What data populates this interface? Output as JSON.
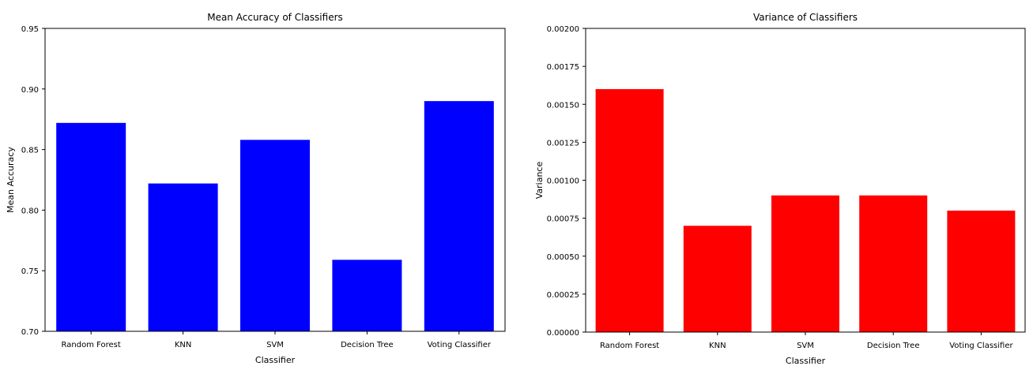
{
  "chart_data": [
    {
      "type": "bar",
      "title": "Mean Accuracy of Classifiers",
      "xlabel": "Classifier",
      "ylabel": "Mean Accuracy",
      "categories": [
        "Random Forest",
        "KNN",
        "SVM",
        "Decision Tree",
        "Voting Classifier"
      ],
      "values": [
        0.872,
        0.822,
        0.858,
        0.759,
        0.89
      ],
      "ylim": [
        0.7,
        0.95
      ],
      "yticks": [
        "0.70",
        "0.75",
        "0.80",
        "0.85",
        "0.90",
        "0.95"
      ],
      "color": "#0000ff",
      "grid": false
    },
    {
      "type": "bar",
      "title": "Variance of Classifiers",
      "xlabel": "Classifier",
      "ylabel": "Variance",
      "categories": [
        "Random Forest",
        "KNN",
        "SVM",
        "Decision Tree",
        "Voting Classifier"
      ],
      "values": [
        0.0016,
        0.0007,
        0.0009,
        0.0009,
        0.0008
      ],
      "ylim": [
        0.0,
        0.002
      ],
      "yticks": [
        "0.00000",
        "0.00025",
        "0.00050",
        "0.00075",
        "0.00100",
        "0.00125",
        "0.00150",
        "0.00175",
        "0.00200"
      ],
      "color": "#ff0000",
      "grid": false
    }
  ]
}
